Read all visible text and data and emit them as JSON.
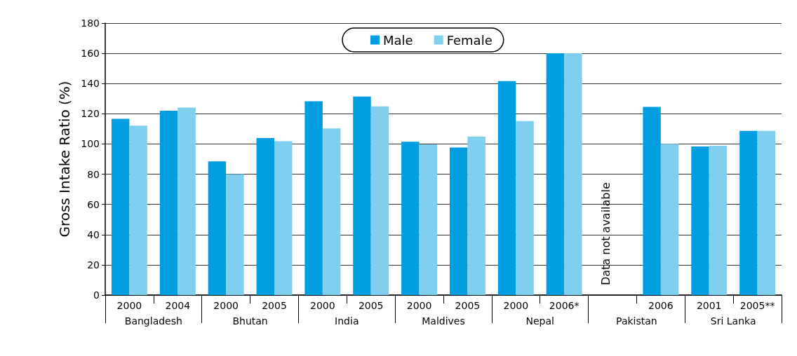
{
  "chart_data": {
    "type": "bar",
    "ylabel": "Gross Intake Ratio (%)",
    "categories": [
      "2000",
      "2004",
      "2000",
      "2005",
      "2000",
      "2005",
      "2000",
      "2005",
      "2000",
      "2006*",
      null,
      "2006",
      "2001",
      "2005**"
    ],
    "series": [
      {
        "name": "Male",
        "color": "#009ee0",
        "values": [
          116.7,
          122.0,
          88.5,
          103.9,
          128.3,
          131.4,
          101.5,
          97.6,
          141.6,
          160,
          null,
          124.6,
          98.4,
          108.7
        ]
      },
      {
        "name": "Female",
        "color": "#80cfef",
        "values": [
          112.1,
          124.1,
          80.0,
          101.8,
          110.3,
          124.9,
          99.8,
          104.9,
          115.2,
          160,
          null,
          100.1,
          98.8,
          108.7
        ]
      }
    ],
    "annotations": [
      "Bangladesh",
      "Bhutan",
      "India",
      "Maldives",
      "Nepal",
      "Pakistan",
      "Sri Lanka",
      "Data not available"
    ],
    "ylim": [
      0,
      180
    ],
    "yticks": [
      0,
      20,
      40,
      60,
      80,
      100,
      120,
      140,
      160,
      180
    ],
    "grid": "y",
    "legend": "top"
  }
}
